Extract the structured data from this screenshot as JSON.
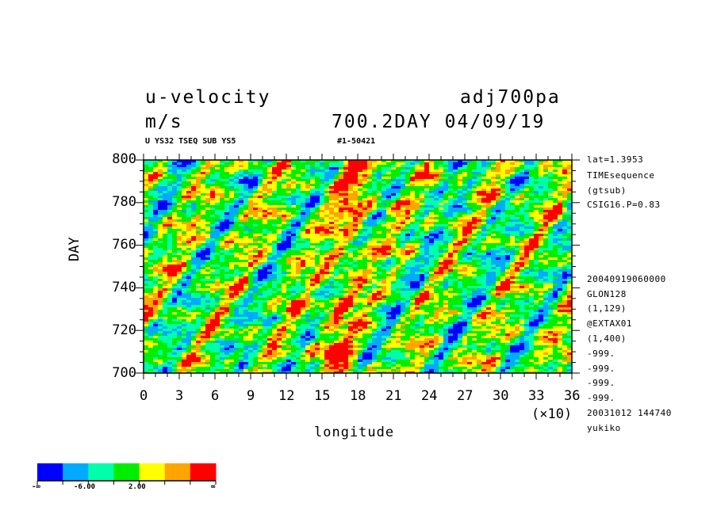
{
  "header": {
    "title_left": "u-velocity",
    "title_right": "adj700pa",
    "units": "m/s",
    "time_stamp": "700.2DAY 04/09/19",
    "sub_left": "U YS32 TSEQ SUB YS5",
    "sub_right": "#1-50421"
  },
  "side_info": [
    "lat=1.3953",
    "TIMEsequence",
    "(gtsub)",
    "CSIG16.P=0.83",
    "20040919060000",
    "GLON128",
    "(1,129)",
    "@EXTAX01",
    "(1,400)",
    "-999.",
    "-999.",
    "-999.",
    "-999.",
    "20031012 144740",
    "yukiko"
  ],
  "colorbar": {
    "colors": [
      "#0000ff",
      "#00aaff",
      "#00ffaa",
      "#00ee00",
      "#ffff00",
      "#ffa500",
      "#ff0000"
    ],
    "labels": [
      "-∞",
      "-6.00",
      "2.00",
      "∞"
    ]
  },
  "chart_data": {
    "type": "heatmap",
    "xlabel": "longitude",
    "ylabel": "DAY",
    "x_multiplier": "(×10)",
    "xlim": [
      0,
      36
    ],
    "ylim": [
      700,
      800
    ],
    "x_ticks": [
      "0",
      "3",
      "6",
      "9",
      "12",
      "15",
      "18",
      "21",
      "24",
      "27",
      "30",
      "33",
      "36"
    ],
    "y_ticks": [
      "700",
      "720",
      "740",
      "760",
      "780",
      "800"
    ],
    "color_levels": [
      "-∞",
      "-6.00",
      "2.00",
      "∞"
    ],
    "features": [
      {
        "description": "eastward-propagating positive (red/orange) band",
        "longitude_range": [
          14,
          20
        ],
        "day_range": [
          700,
          800
        ]
      },
      {
        "description": "negative (blue) streaks tilted eastward with time",
        "longitude_range": [
          0,
          36
        ],
        "day_range": [
          700,
          800
        ]
      }
    ]
  }
}
